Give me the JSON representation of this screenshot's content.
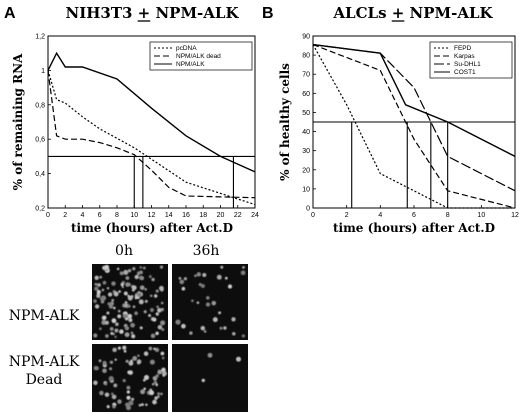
{
  "panels": {
    "a_letter": "A",
    "b_letter": "B"
  },
  "micrographs": {
    "col_labels": [
      "0h",
      "36h"
    ],
    "row_labels": [
      [
        "NPM-ALK"
      ],
      [
        "NPM-ALK",
        "Dead"
      ]
    ]
  },
  "chart_data": [
    {
      "type": "line",
      "title": "NIH3T3 + NPM-ALK",
      "title_underline_char": "+",
      "xlabel": "time (hours) after Act.D",
      "ylabel": "% of remaining RNA",
      "xlim": [
        0,
        24
      ],
      "ylim": [
        0.2,
        1.2
      ],
      "xticks": [
        "0",
        "2",
        "4",
        "6",
        "8",
        "10",
        "12",
        "14",
        "16",
        "18",
        "20",
        "22",
        "24"
      ],
      "yticks": [
        "0,2",
        "0,4",
        "0,6",
        "0,8",
        "1",
        "1,2"
      ],
      "grid": false,
      "legend_position": "top-right",
      "series": [
        {
          "name": "pcDNA",
          "style": "dotted",
          "x": [
            0,
            1,
            2,
            4,
            6,
            10,
            16,
            24
          ],
          "y": [
            1.0,
            0.83,
            0.81,
            0.73,
            0.66,
            0.55,
            0.35,
            0.22
          ]
        },
        {
          "name": "NPM/ALK dead",
          "style": "dashed",
          "x": [
            0,
            1,
            2,
            4,
            6,
            8,
            10,
            12,
            14,
            16,
            24
          ],
          "y": [
            1.0,
            0.62,
            0.6,
            0.6,
            0.58,
            0.55,
            0.51,
            0.42,
            0.32,
            0.27,
            0.26
          ]
        },
        {
          "name": "NPM/ALK",
          "style": "solid",
          "x": [
            0,
            1,
            2,
            4,
            8,
            12,
            16,
            20,
            24
          ],
          "y": [
            1.0,
            1.1,
            1.02,
            1.02,
            0.95,
            0.78,
            0.62,
            0.5,
            0.41
          ]
        }
      ],
      "reference": {
        "y": 0.5,
        "x_drops": [
          10,
          11,
          21.5
        ]
      }
    },
    {
      "type": "line",
      "title": "ALCLs + NPM-ALK",
      "title_underline_char": "+",
      "xlabel": "time (hours) after Act.D",
      "ylabel": "% of healthy cells",
      "xlim": [
        0,
        12
      ],
      "ylim": [
        0,
        100
      ],
      "xticks": [
        "0",
        "2",
        "4",
        "6",
        "8",
        "10",
        "12"
      ],
      "yticks": [
        "0",
        "10",
        "20",
        "30",
        "40",
        "50",
        "60",
        "70",
        "80",
        "90"
      ],
      "grid": false,
      "legend_position": "top-right",
      "series": [
        {
          "name": "FEPD",
          "style": "dotted",
          "x": [
            0,
            2,
            4,
            6,
            8,
            12
          ],
          "y": [
            95,
            60,
            20,
            10,
            0,
            0
          ]
        },
        {
          "name": "Karpas",
          "style": "dashed",
          "x": [
            0,
            4,
            6,
            8,
            12
          ],
          "y": [
            95,
            80,
            40,
            10,
            0
          ]
        },
        {
          "name": "Su-DHL1",
          "style": "longdash",
          "x": [
            0,
            4,
            6,
            8,
            12
          ],
          "y": [
            95,
            90,
            70,
            30,
            10
          ]
        },
        {
          "name": "COST1",
          "style": "solid",
          "x": [
            0,
            4,
            5.5,
            8,
            12
          ],
          "y": [
            95,
            90,
            60,
            50,
            30
          ]
        }
      ],
      "reference": {
        "y": 50,
        "x_drops": [
          2.3,
          5.6,
          7,
          8
        ]
      }
    }
  ]
}
